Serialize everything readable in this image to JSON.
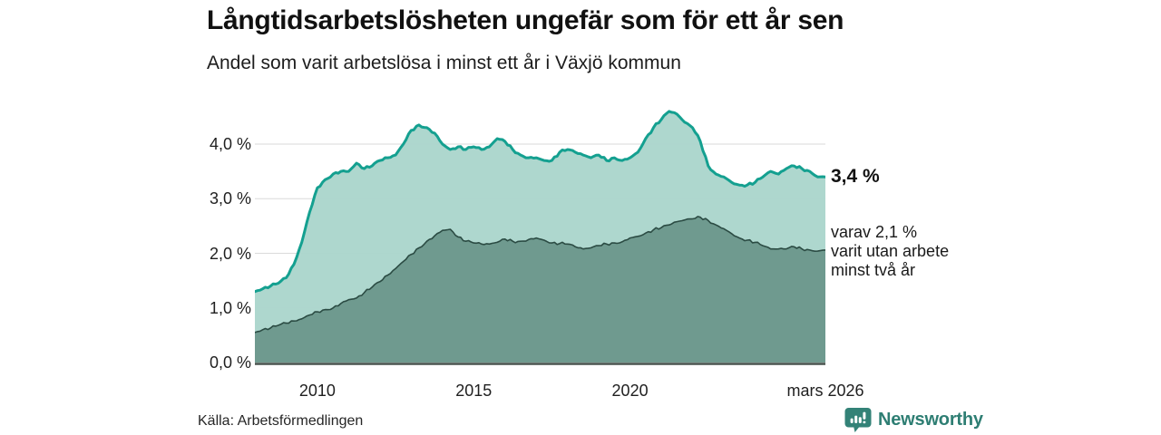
{
  "header": {
    "title": "Långtidsarbetslösheten ungefär som för ett år sen",
    "subtitle": "Andel som varit arbetslösa i minst ett år i Växjö kommun"
  },
  "annotations": {
    "latest_total": "3,4 %",
    "secondary": [
      "varav 2,1 %",
      "varit utan arbete",
      "minst två år"
    ]
  },
  "footer": {
    "source": "Källa: Arbetsförmedlingen",
    "brand": "Newsworthy",
    "brand_color": "#2e7e73",
    "logo_icon": "bar-chart-speech-bubble-icon"
  },
  "chart_data": {
    "type": "area",
    "title": "Andel som varit arbetslösa i minst ett år i Växjö kommun",
    "xlabel": "",
    "ylabel": "%",
    "xlim": [
      2008,
      2026.25
    ],
    "ylim": [
      0,
      4.8
    ],
    "grid": true,
    "grid_color": "#dadada",
    "axis_color": "#46514c",
    "y_ticks": [
      {
        "v": 0,
        "label": "0,0 %"
      },
      {
        "v": 1,
        "label": "1,0 %"
      },
      {
        "v": 2,
        "label": "2,0 %"
      },
      {
        "v": 3,
        "label": "3,0 %"
      },
      {
        "v": 4,
        "label": "4,0 %"
      }
    ],
    "x_ticks": [
      {
        "v": 2010,
        "label": "2010"
      },
      {
        "v": 2015,
        "label": "2015"
      },
      {
        "v": 2020,
        "label": "2020"
      },
      {
        "v": 2026.25,
        "label": "mars 2026"
      }
    ],
    "x": [
      2008,
      2008.25,
      2008.5,
      2008.75,
      2009,
      2009.25,
      2009.5,
      2009.75,
      2010,
      2010.25,
      2010.5,
      2010.75,
      2011,
      2011.25,
      2011.5,
      2011.75,
      2012,
      2012.25,
      2012.5,
      2012.75,
      2013,
      2013.25,
      2013.5,
      2013.75,
      2014,
      2014.25,
      2014.5,
      2014.75,
      2015,
      2015.25,
      2015.5,
      2015.75,
      2016,
      2016.25,
      2016.5,
      2016.75,
      2017,
      2017.25,
      2017.5,
      2017.75,
      2018,
      2018.25,
      2018.5,
      2018.75,
      2019,
      2019.25,
      2019.5,
      2019.75,
      2020,
      2020.25,
      2020.5,
      2020.75,
      2021,
      2021.25,
      2021.5,
      2021.75,
      2022,
      2022.25,
      2022.5,
      2022.75,
      2023,
      2023.25,
      2023.5,
      2023.75,
      2024,
      2024.25,
      2024.5,
      2024.75,
      2025,
      2025.25,
      2025.5,
      2025.75,
      2026,
      2026.25
    ],
    "series": [
      {
        "name": "Andel arbetslösa minst ett år",
        "line_color": "#14a090",
        "fill_color": "#abd5cc",
        "latest_value": 3.4,
        "values": [
          1.3,
          1.35,
          1.4,
          1.45,
          1.55,
          1.8,
          2.2,
          2.75,
          3.2,
          3.35,
          3.45,
          3.5,
          3.5,
          3.65,
          3.55,
          3.6,
          3.7,
          3.75,
          3.8,
          4.0,
          4.25,
          4.35,
          4.3,
          4.2,
          4.0,
          3.9,
          3.95,
          3.9,
          3.95,
          3.9,
          3.95,
          4.1,
          4.05,
          3.9,
          3.8,
          3.75,
          3.75,
          3.7,
          3.7,
          3.85,
          3.9,
          3.85,
          3.8,
          3.75,
          3.8,
          3.7,
          3.75,
          3.7,
          3.75,
          3.85,
          4.1,
          4.3,
          4.45,
          4.6,
          4.55,
          4.4,
          4.3,
          4.05,
          3.6,
          3.45,
          3.4,
          3.3,
          3.25,
          3.25,
          3.3,
          3.4,
          3.5,
          3.45,
          3.55,
          3.6,
          3.55,
          3.5,
          3.4,
          3.4
        ]
      },
      {
        "name": "varav utan arbete minst två år",
        "line_color": "#2b4b43",
        "fill_color": "#6f9a8f",
        "latest_value": 2.1,
        "values": [
          0.55,
          0.6,
          0.63,
          0.68,
          0.72,
          0.76,
          0.8,
          0.87,
          0.93,
          0.97,
          1.0,
          1.08,
          1.15,
          1.18,
          1.28,
          1.38,
          1.48,
          1.6,
          1.72,
          1.85,
          1.98,
          2.1,
          2.22,
          2.32,
          2.42,
          2.44,
          2.3,
          2.22,
          2.19,
          2.17,
          2.17,
          2.2,
          2.26,
          2.22,
          2.22,
          2.25,
          2.28,
          2.24,
          2.19,
          2.18,
          2.17,
          2.12,
          2.08,
          2.1,
          2.14,
          2.17,
          2.19,
          2.21,
          2.28,
          2.31,
          2.37,
          2.43,
          2.47,
          2.52,
          2.58,
          2.61,
          2.63,
          2.66,
          2.6,
          2.52,
          2.45,
          2.36,
          2.28,
          2.24,
          2.2,
          2.14,
          2.08,
          2.08,
          2.08,
          2.12,
          2.08,
          2.06,
          2.04,
          2.06
        ]
      }
    ]
  }
}
